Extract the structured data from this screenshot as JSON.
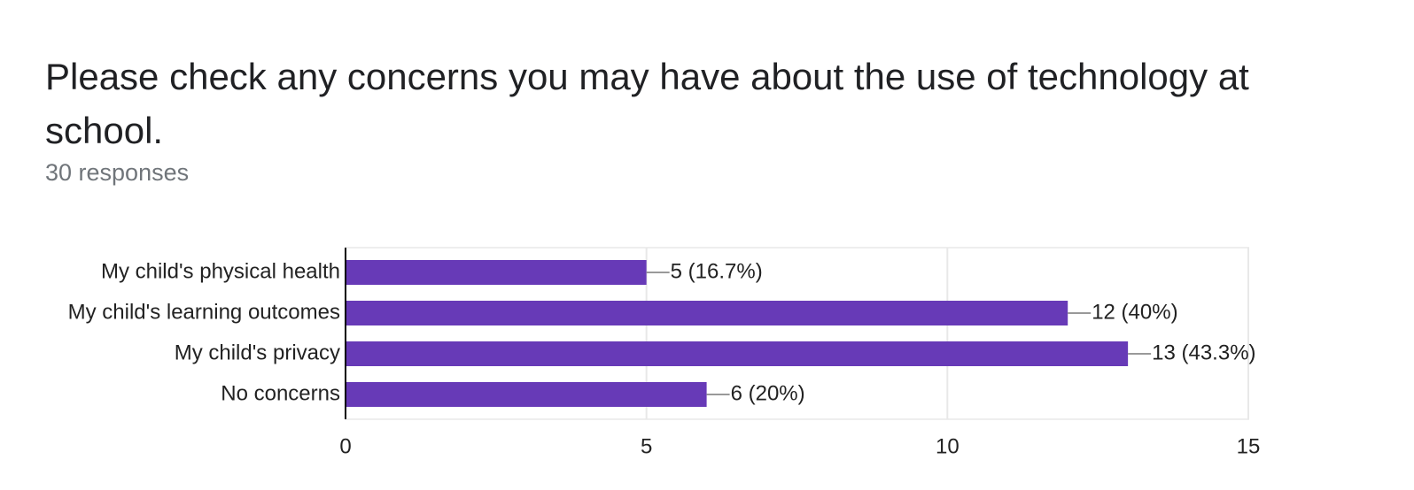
{
  "chart_data": {
    "type": "bar",
    "orientation": "horizontal",
    "title": "Please check any concerns you may have about the use of technology at school.",
    "subtitle": "30 responses",
    "categories": [
      "My child's physical health",
      "My child's learning outcomes",
      "My child's privacy",
      "No concerns"
    ],
    "values": [
      5,
      12,
      13,
      6
    ],
    "value_labels": [
      "5 (16.7%)",
      "12 (40%)",
      "13 (43.3%)",
      "6 (20%)"
    ],
    "color": "#673ab7",
    "xlim": [
      0,
      15
    ],
    "xticks": [
      0,
      5,
      10,
      15
    ],
    "grid": true
  }
}
